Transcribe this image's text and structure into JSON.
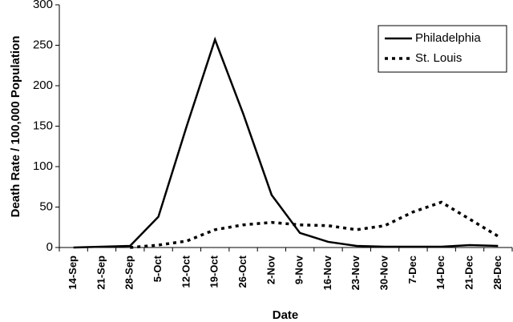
{
  "chart_data": {
    "type": "line",
    "x_label": "Date",
    "y_label": "Death Rate / 100,000 Population",
    "categories": [
      "14-Sep",
      "21-Sep",
      "28-Sep",
      "5-Oct",
      "12-Oct",
      "19-Oct",
      "26-Oct",
      "2-Nov",
      "9-Nov",
      "16-Nov",
      "23-Nov",
      "30-Nov",
      "7-Dec",
      "14-Dec",
      "21-Dec",
      "28-Dec"
    ],
    "series": [
      {
        "name": "Philadelphia",
        "color": "#000000",
        "style": "solid",
        "values": [
          0,
          1,
          2,
          38,
          150,
          257,
          165,
          65,
          18,
          7,
          2,
          1,
          1,
          1,
          3,
          2
        ]
      },
      {
        "name": "St. Louis",
        "color": "#000000",
        "style": "dotted",
        "values": [
          null,
          null,
          0,
          3,
          8,
          22,
          28,
          31,
          28,
          27,
          22,
          27,
          44,
          56,
          35,
          14
        ]
      }
    ],
    "ylim": [
      0,
      300
    ],
    "yticks": [
      0,
      50,
      100,
      150,
      200,
      250,
      300
    ],
    "grid": false,
    "legend": "upper right"
  }
}
